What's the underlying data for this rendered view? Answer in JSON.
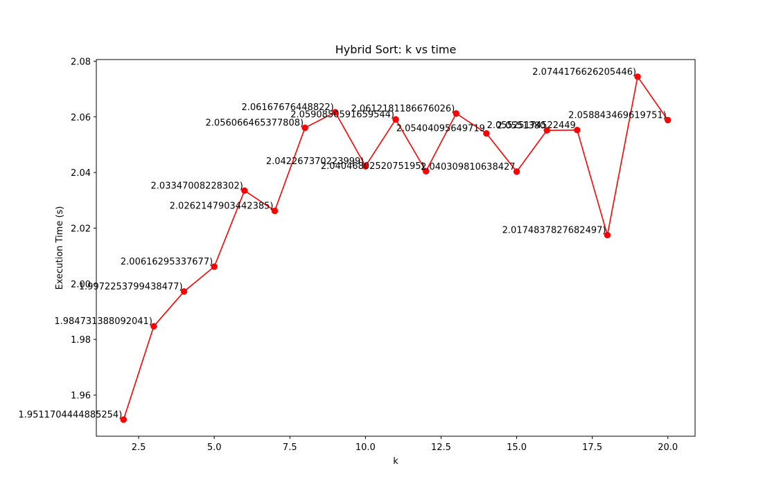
{
  "chart_data": {
    "type": "line",
    "title": "Hybrid Sort: k vs time",
    "xlabel": "k",
    "ylabel": "Execution Time (s)",
    "xlim": [
      1.1,
      20.9
    ],
    "ylim": [
      1.9452,
      2.0806
    ],
    "x_ticks": [
      2.5,
      5.0,
      7.5,
      10.0,
      12.5,
      15.0,
      17.5,
      20.0
    ],
    "x_tick_labels": [
      "2.5",
      "5.0",
      "7.5",
      "10.0",
      "12.5",
      "15.0",
      "17.5",
      "20.0"
    ],
    "y_ticks": [
      1.96,
      1.98,
      2.0,
      2.02,
      2.04,
      2.06,
      2.08
    ],
    "y_tick_labels": [
      "1.96",
      "1.98",
      "2.00",
      "2.02",
      "2.04",
      "2.06",
      "2.08"
    ],
    "grid": false,
    "series": [
      {
        "color": "#ff0000",
        "marker": "circle",
        "x": [
          2,
          3,
          4,
          5,
          6,
          7,
          8,
          9,
          10,
          11,
          12,
          13,
          14,
          15,
          16,
          17,
          18,
          19,
          20
        ],
        "values": [
          1.9511704444885254,
          1.984731388092041,
          1.9972253799438477,
          2.00616295337677,
          2.03347008228302,
          2.026214790344238,
          2.056066465377808,
          2.06167676448822,
          2.042267370223999,
          2.0590850591659544,
          2.040468025207519,
          2.0612181186676026,
          2.054040956497192,
          2.040309810638428,
          2.055138,
          2.05525174522449,
          2.0174837827682497,
          2.0744176626205446,
          2.058843469619751
        ],
        "data_labels": [
          "1.9511704444885254)",
          "1.984731388092041)",
          "1.9972253799438477)",
          "2.00616295337677)",
          "2.03347008228302)",
          "2.0262147903442385)",
          "2.056066465377808)",
          "2.06167676448822)",
          "2.042267370223999)",
          "2.0590850591659544)",
          "2.0404680252075195)",
          "2.0612181186676026)",
          "2.05404095649719",
          "2.040309810638427",
          "2.0551380",
          "2.05525174522449",
          "2.0174837827682497)",
          "2.0744176626205446)",
          "2.058843469619751)"
        ]
      }
    ],
    "colors": {
      "line": "#ff0000",
      "marker": "#ff0000",
      "axis": "#000000",
      "background": "#ffffff"
    }
  }
}
